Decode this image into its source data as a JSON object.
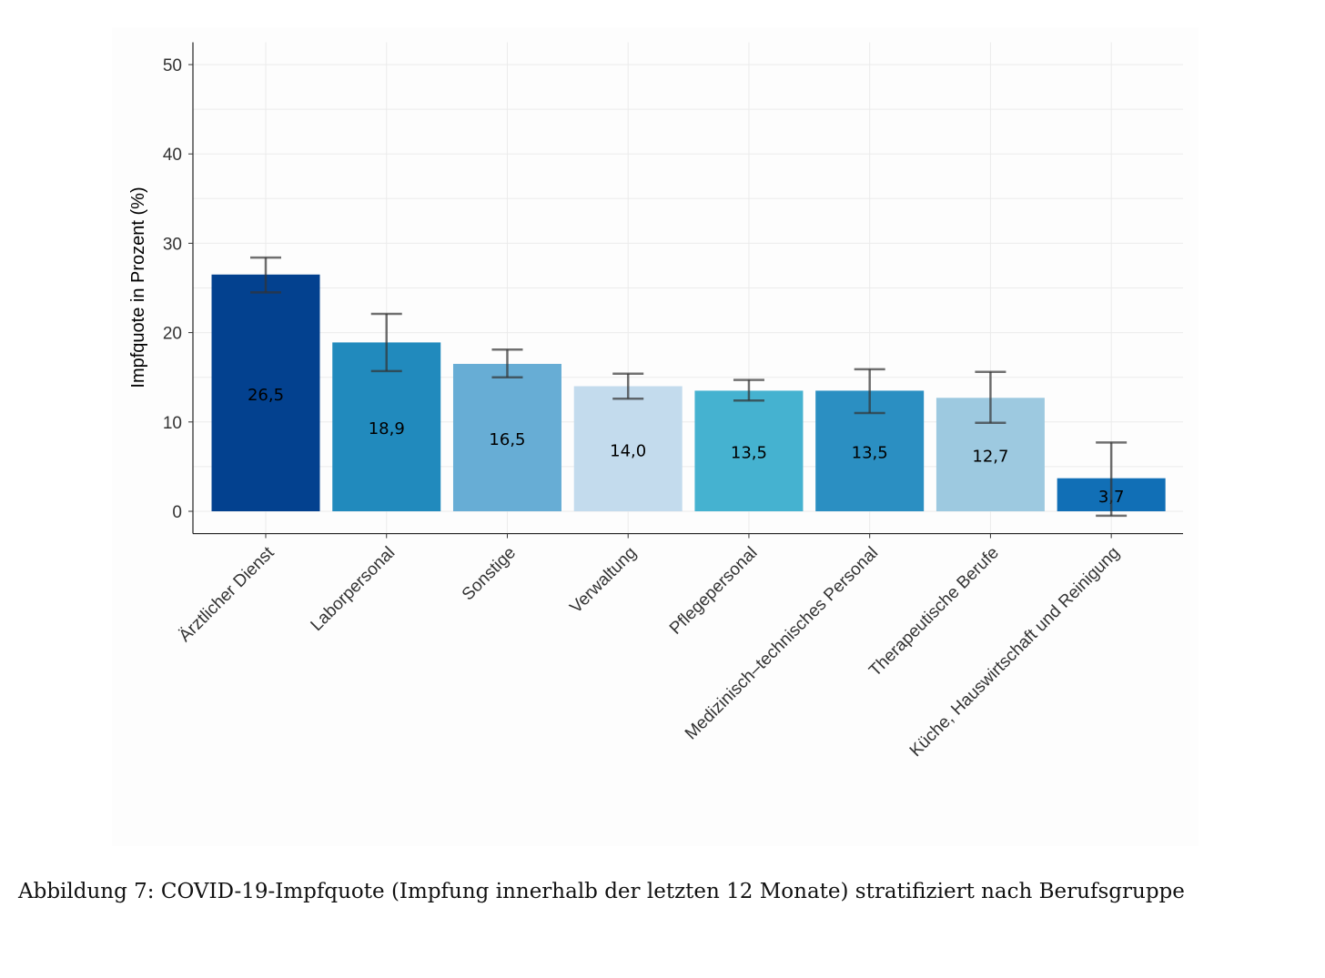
{
  "chart_data": {
    "type": "bar",
    "title": "",
    "xlabel": "",
    "ylabel": "Impfquote in Prozent (%)",
    "ylim": [
      -2.5,
      52.5
    ],
    "yticks": [
      0,
      10,
      20,
      30,
      40,
      50
    ],
    "grid": true,
    "categories": [
      "Ärztlicher Dienst",
      "Laborpersonal",
      "Sonstige",
      "Verwaltung",
      "Pflegepersonal",
      "Medizinisch–technisches Personal",
      "Therapeutische Berufe",
      "Küche, Hauswirtschaft und Reinigung"
    ],
    "values": [
      26.5,
      18.9,
      16.5,
      14.0,
      13.5,
      13.5,
      12.7,
      3.7
    ],
    "labels": [
      "26,5",
      "18,9",
      "16,5",
      "14,0",
      "13,5",
      "13,5",
      "12,7",
      "3,7"
    ],
    "error_low": [
      24.5,
      15.7,
      15.0,
      12.6,
      12.4,
      11.0,
      9.9,
      -0.5
    ],
    "error_high": [
      28.4,
      22.1,
      18.1,
      15.4,
      14.7,
      15.9,
      15.6,
      7.7
    ],
    "colors": [
      "#03418f",
      "#218abd",
      "#67add5",
      "#c3dbed",
      "#45b2d0",
      "#2b8fc2",
      "#9dc9e0",
      "#116fb6"
    ]
  },
  "caption": "Abbildung 7: COVID-19-Impfquote (Impfung innerhalb der letzten 12 Monate) stratifiziert nach Berufsgruppe"
}
